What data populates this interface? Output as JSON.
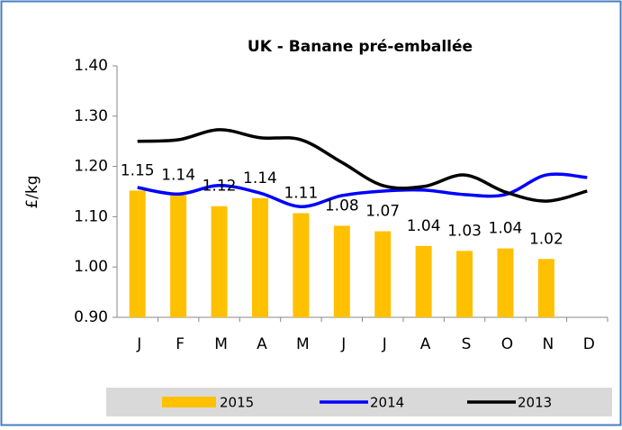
{
  "chart_data": {
    "type": "bar",
    "title": "UK - Banane pré-emballée",
    "y_label": "£/kg",
    "categories": [
      "J",
      "F",
      "M",
      "A",
      "M",
      "J",
      "J",
      "A",
      "S",
      "O",
      "N",
      "D"
    ],
    "series": [
      {
        "name": "2015",
        "type": "bar",
        "color": "#ffc000",
        "values": [
          1.152,
          1.143,
          1.121,
          1.137,
          1.107,
          1.082,
          1.071,
          1.042,
          1.032,
          1.037,
          1.016,
          null
        ],
        "value_labels": [
          "1.15",
          "1.14",
          "1.12",
          "1.14",
          "1.11",
          "1.08",
          "1.07",
          "1.04",
          "1.03",
          "1.04",
          "1.02",
          null
        ]
      },
      {
        "name": "2014",
        "type": "line",
        "color": "#0000ff",
        "values": [
          1.158,
          1.145,
          1.162,
          1.147,
          1.12,
          1.142,
          1.151,
          1.153,
          1.144,
          1.144,
          1.183,
          1.178
        ]
      },
      {
        "name": "2013",
        "type": "line",
        "color": "#000000",
        "values": [
          1.25,
          1.253,
          1.273,
          1.257,
          1.253,
          1.208,
          1.162,
          1.16,
          1.183,
          1.149,
          1.131,
          1.151
        ]
      }
    ],
    "ylim": [
      0.9,
      1.4
    ],
    "yticks": [
      {
        "value": 0.9,
        "label": "0.90"
      },
      {
        "value": 1.0,
        "label": "1.00"
      },
      {
        "value": 1.1,
        "label": "1.10"
      },
      {
        "value": 1.2,
        "label": "1.20"
      },
      {
        "value": 1.3,
        "label": "1.30"
      },
      {
        "value": 1.4,
        "label": "1.40"
      }
    ],
    "legend": "bottom"
  }
}
